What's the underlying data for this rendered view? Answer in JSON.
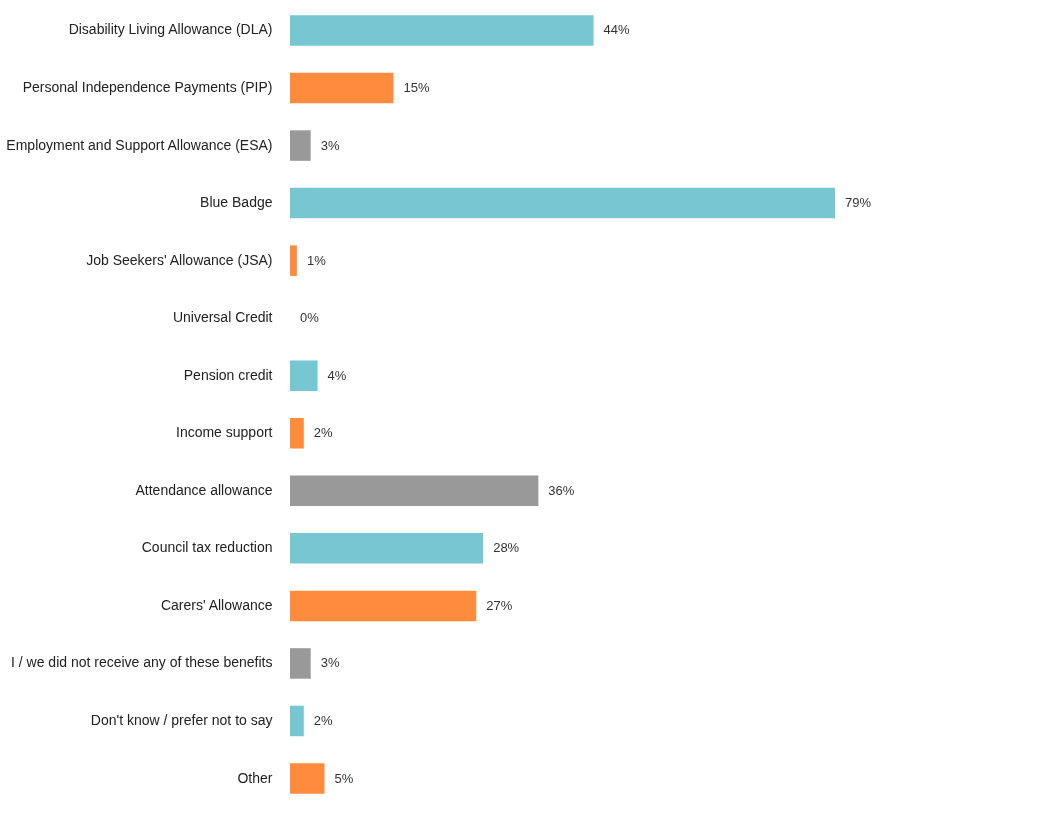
{
  "chart_data": {
    "type": "bar",
    "orientation": "horizontal",
    "categories": [
      "Disability Living Allowance (DLA)",
      "Personal Independence Payments (PIP)",
      "Employment and Support Allowance (ESA)",
      "Blue Badge",
      "Job Seekers' Allowance (JSA)",
      "Universal Credit",
      "Pension credit",
      "Income support",
      "Attendance allowance",
      "Council tax reduction",
      "Carers' Allowance",
      "I / we did not receive any of these benefits",
      "Don't know / prefer not to say",
      "Other"
    ],
    "values": [
      44,
      15,
      3,
      79,
      1,
      0,
      4,
      2,
      36,
      28,
      27,
      3,
      2,
      5
    ],
    "value_labels": [
      "44%",
      "15%",
      "3%",
      "79%",
      "1%",
      "0%",
      "4%",
      "2%",
      "36%",
      "28%",
      "27%",
      "3%",
      "2%",
      "5%"
    ],
    "colors": [
      "#77c7d2",
      "#ff8c3c",
      "#999999",
      "#77c7d2",
      "#ff8c3c",
      "#999999",
      "#77c7d2",
      "#ff8c3c",
      "#999999",
      "#77c7d2",
      "#ff8c3c",
      "#999999",
      "#77c7d2",
      "#ff8c3c"
    ]
  }
}
